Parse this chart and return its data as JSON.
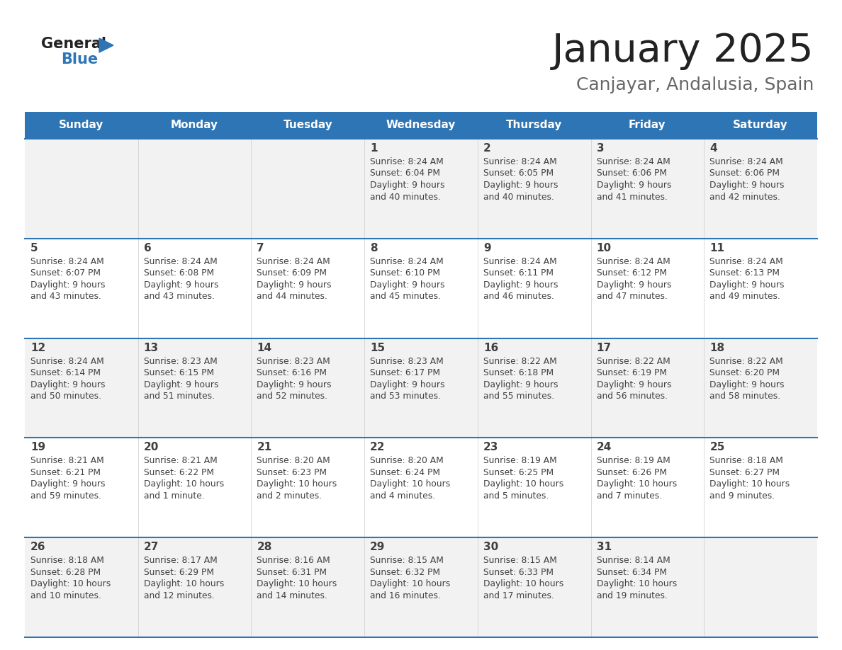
{
  "title": "January 2025",
  "subtitle": "Canjayar, Andalusia, Spain",
  "days_of_week": [
    "Sunday",
    "Monday",
    "Tuesday",
    "Wednesday",
    "Thursday",
    "Friday",
    "Saturday"
  ],
  "header_bg": "#2E75B6",
  "header_text_color": "#FFFFFF",
  "row_bg_odd": "#F2F2F2",
  "row_bg_even": "#FFFFFF",
  "separator_color": "#2E75B6",
  "cell_text_color": "#404040",
  "title_color": "#222222",
  "subtitle_color": "#666666",
  "logo_general_color": "#222222",
  "logo_blue_color": "#2E75B6",
  "calendar_data": [
    [
      {
        "day": null,
        "sunrise": null,
        "sunset": null,
        "daylight": null
      },
      {
        "day": null,
        "sunrise": null,
        "sunset": null,
        "daylight": null
      },
      {
        "day": null,
        "sunrise": null,
        "sunset": null,
        "daylight": null
      },
      {
        "day": 1,
        "sunrise": "8:24 AM",
        "sunset": "6:04 PM",
        "daylight": "9 hours\nand 40 minutes."
      },
      {
        "day": 2,
        "sunrise": "8:24 AM",
        "sunset": "6:05 PM",
        "daylight": "9 hours\nand 40 minutes."
      },
      {
        "day": 3,
        "sunrise": "8:24 AM",
        "sunset": "6:06 PM",
        "daylight": "9 hours\nand 41 minutes."
      },
      {
        "day": 4,
        "sunrise": "8:24 AM",
        "sunset": "6:06 PM",
        "daylight": "9 hours\nand 42 minutes."
      }
    ],
    [
      {
        "day": 5,
        "sunrise": "8:24 AM",
        "sunset": "6:07 PM",
        "daylight": "9 hours\nand 43 minutes."
      },
      {
        "day": 6,
        "sunrise": "8:24 AM",
        "sunset": "6:08 PM",
        "daylight": "9 hours\nand 43 minutes."
      },
      {
        "day": 7,
        "sunrise": "8:24 AM",
        "sunset": "6:09 PM",
        "daylight": "9 hours\nand 44 minutes."
      },
      {
        "day": 8,
        "sunrise": "8:24 AM",
        "sunset": "6:10 PM",
        "daylight": "9 hours\nand 45 minutes."
      },
      {
        "day": 9,
        "sunrise": "8:24 AM",
        "sunset": "6:11 PM",
        "daylight": "9 hours\nand 46 minutes."
      },
      {
        "day": 10,
        "sunrise": "8:24 AM",
        "sunset": "6:12 PM",
        "daylight": "9 hours\nand 47 minutes."
      },
      {
        "day": 11,
        "sunrise": "8:24 AM",
        "sunset": "6:13 PM",
        "daylight": "9 hours\nand 49 minutes."
      }
    ],
    [
      {
        "day": 12,
        "sunrise": "8:24 AM",
        "sunset": "6:14 PM",
        "daylight": "9 hours\nand 50 minutes."
      },
      {
        "day": 13,
        "sunrise": "8:23 AM",
        "sunset": "6:15 PM",
        "daylight": "9 hours\nand 51 minutes."
      },
      {
        "day": 14,
        "sunrise": "8:23 AM",
        "sunset": "6:16 PM",
        "daylight": "9 hours\nand 52 minutes."
      },
      {
        "day": 15,
        "sunrise": "8:23 AM",
        "sunset": "6:17 PM",
        "daylight": "9 hours\nand 53 minutes."
      },
      {
        "day": 16,
        "sunrise": "8:22 AM",
        "sunset": "6:18 PM",
        "daylight": "9 hours\nand 55 minutes."
      },
      {
        "day": 17,
        "sunrise": "8:22 AM",
        "sunset": "6:19 PM",
        "daylight": "9 hours\nand 56 minutes."
      },
      {
        "day": 18,
        "sunrise": "8:22 AM",
        "sunset": "6:20 PM",
        "daylight": "9 hours\nand 58 minutes."
      }
    ],
    [
      {
        "day": 19,
        "sunrise": "8:21 AM",
        "sunset": "6:21 PM",
        "daylight": "9 hours\nand 59 minutes."
      },
      {
        "day": 20,
        "sunrise": "8:21 AM",
        "sunset": "6:22 PM",
        "daylight": "10 hours\nand 1 minute."
      },
      {
        "day": 21,
        "sunrise": "8:20 AM",
        "sunset": "6:23 PM",
        "daylight": "10 hours\nand 2 minutes."
      },
      {
        "day": 22,
        "sunrise": "8:20 AM",
        "sunset": "6:24 PM",
        "daylight": "10 hours\nand 4 minutes."
      },
      {
        "day": 23,
        "sunrise": "8:19 AM",
        "sunset": "6:25 PM",
        "daylight": "10 hours\nand 5 minutes."
      },
      {
        "day": 24,
        "sunrise": "8:19 AM",
        "sunset": "6:26 PM",
        "daylight": "10 hours\nand 7 minutes."
      },
      {
        "day": 25,
        "sunrise": "8:18 AM",
        "sunset": "6:27 PM",
        "daylight": "10 hours\nand 9 minutes."
      }
    ],
    [
      {
        "day": 26,
        "sunrise": "8:18 AM",
        "sunset": "6:28 PM",
        "daylight": "10 hours\nand 10 minutes."
      },
      {
        "day": 27,
        "sunrise": "8:17 AM",
        "sunset": "6:29 PM",
        "daylight": "10 hours\nand 12 minutes."
      },
      {
        "day": 28,
        "sunrise": "8:16 AM",
        "sunset": "6:31 PM",
        "daylight": "10 hours\nand 14 minutes."
      },
      {
        "day": 29,
        "sunrise": "8:15 AM",
        "sunset": "6:32 PM",
        "daylight": "10 hours\nand 16 minutes."
      },
      {
        "day": 30,
        "sunrise": "8:15 AM",
        "sunset": "6:33 PM",
        "daylight": "10 hours\nand 17 minutes."
      },
      {
        "day": 31,
        "sunrise": "8:14 AM",
        "sunset": "6:34 PM",
        "daylight": "10 hours\nand 19 minutes."
      },
      {
        "day": null,
        "sunrise": null,
        "sunset": null,
        "daylight": null
      }
    ]
  ]
}
